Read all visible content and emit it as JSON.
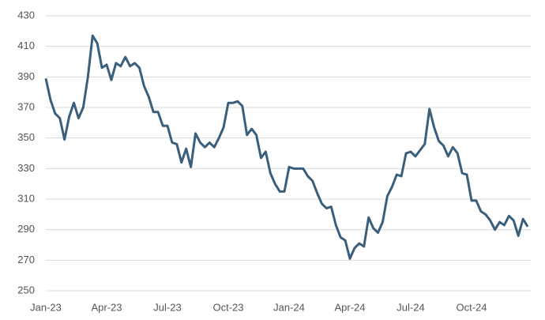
{
  "chart_data": {
    "type": "line",
    "categories": [
      "Jan-23",
      null,
      null,
      null,
      null,
      null,
      null,
      null,
      null,
      null,
      null,
      null,
      null,
      "Apr-23",
      null,
      null,
      null,
      null,
      null,
      null,
      null,
      null,
      null,
      null,
      null,
      null,
      "Jul-23",
      null,
      null,
      null,
      null,
      null,
      null,
      null,
      null,
      null,
      null,
      null,
      null,
      "Oct-23",
      null,
      null,
      null,
      null,
      null,
      null,
      null,
      null,
      null,
      null,
      null,
      null,
      "Jan-24",
      null,
      null,
      null,
      null,
      null,
      null,
      null,
      null,
      null,
      null,
      null,
      null,
      "Apr-24",
      null,
      null,
      null,
      null,
      null,
      null,
      null,
      null,
      null,
      null,
      null,
      null,
      "Jul-24",
      null,
      null,
      null,
      null,
      null,
      null,
      null,
      null,
      null,
      null,
      null,
      null,
      "Oct-24",
      null,
      null,
      null,
      null,
      null,
      null,
      null,
      null,
      null,
      null,
      null,
      null
    ],
    "values": [
      389,
      375,
      366,
      363,
      349,
      364,
      373,
      363,
      370,
      390,
      417,
      412,
      396,
      398,
      388,
      399,
      397,
      403,
      397,
      399,
      396,
      384,
      377,
      367,
      367,
      358,
      358,
      347,
      346,
      334,
      343,
      331,
      353,
      347,
      344,
      347,
      344,
      350,
      357,
      373,
      373,
      374,
      371,
      352,
      356,
      352,
      337,
      341,
      327,
      320,
      315,
      315,
      331,
      330,
      330,
      330,
      325,
      322,
      314,
      307,
      304,
      305,
      293,
      285,
      283,
      271,
      278,
      281,
      279,
      298,
      291,
      288,
      295,
      312,
      318,
      326,
      325,
      340,
      341,
      338,
      342,
      346,
      369,
      357,
      348,
      345,
      338,
      344,
      340,
      327,
      326,
      309,
      309,
      302,
      300,
      296,
      290,
      295,
      293,
      299,
      296,
      286,
      297,
      292
    ],
    "color": "#3a5f7d",
    "ylim": [
      250,
      430
    ],
    "yticks": [
      250,
      270,
      290,
      310,
      330,
      350,
      370,
      390,
      410,
      430
    ],
    "grid": true
  }
}
